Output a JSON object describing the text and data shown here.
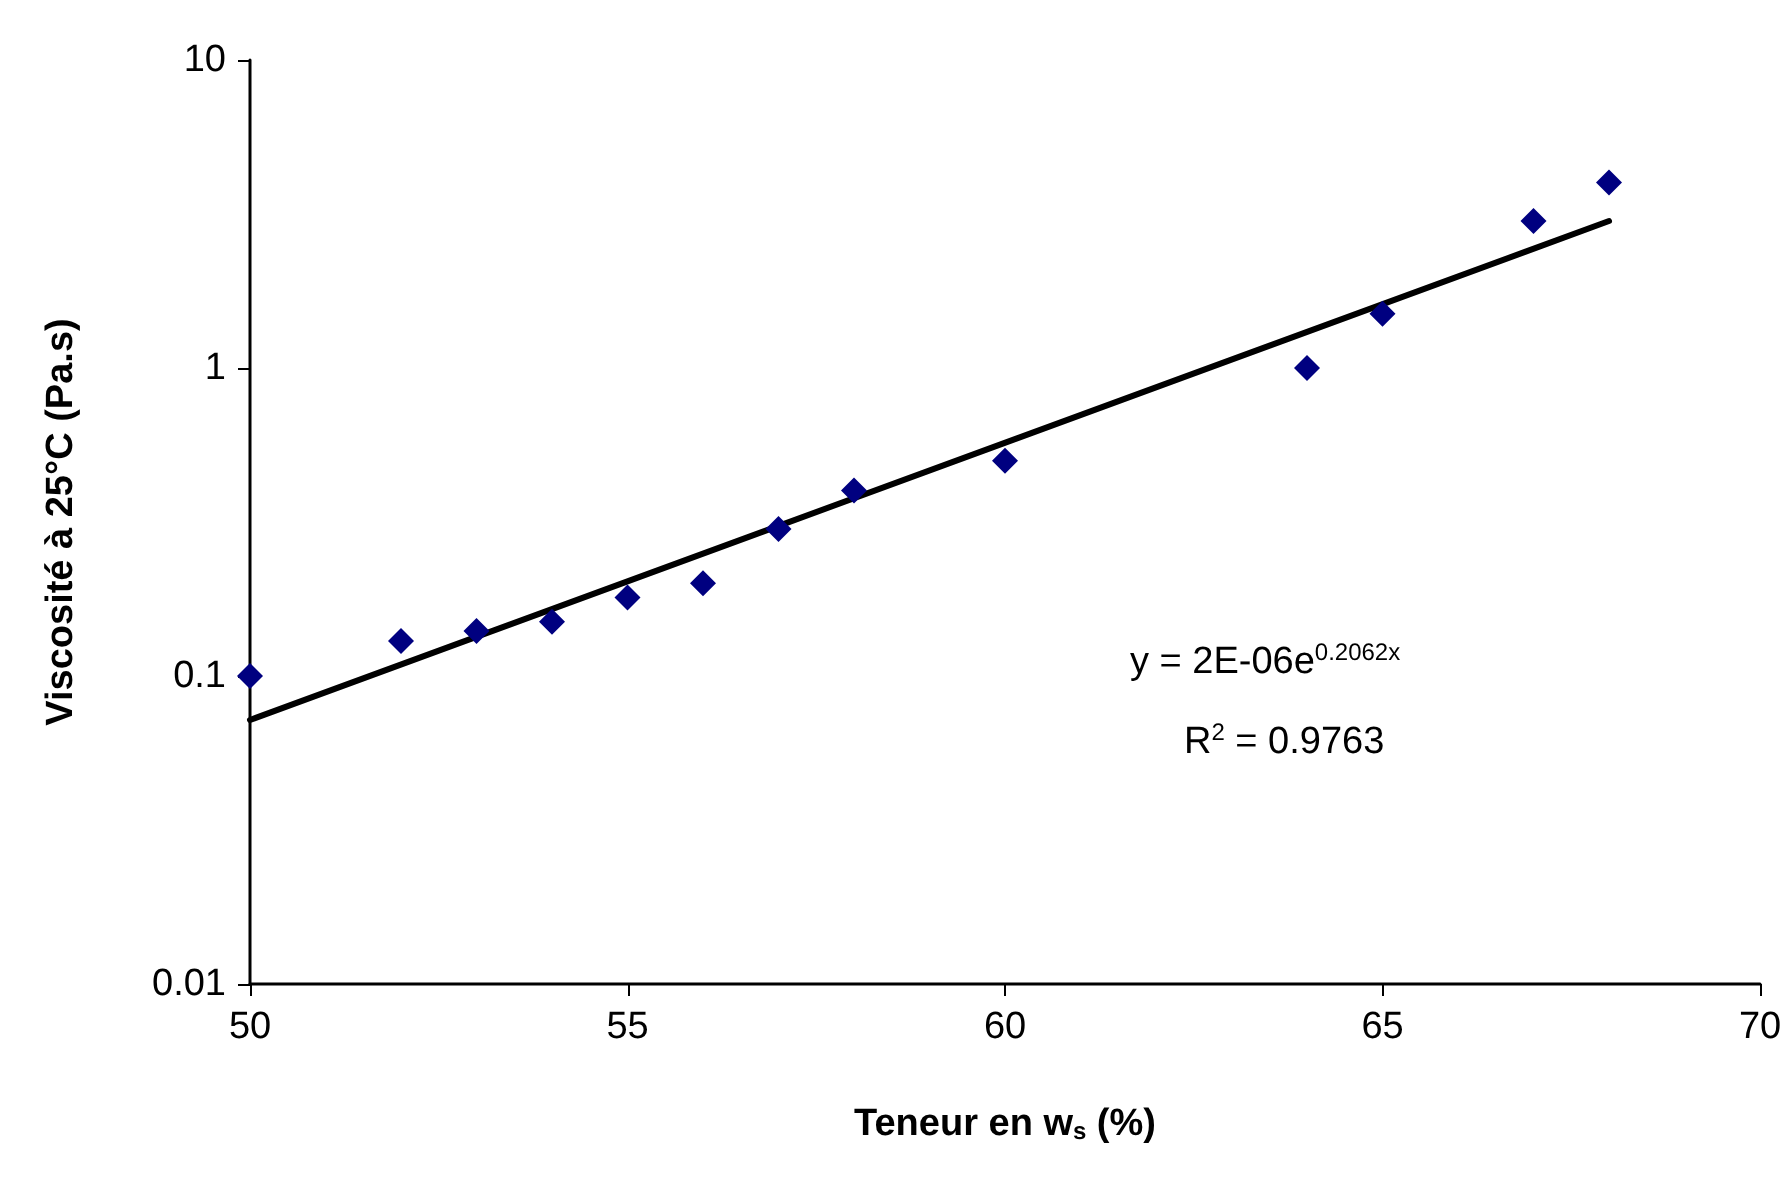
{
  "chart_data": {
    "type": "scatter",
    "xlabel": "Teneur en w$_{s}$ (%)",
    "ylabel": "Viscosité à 25°C (Pa.s)",
    "x": [
      50,
      52,
      53,
      54,
      55,
      56,
      57,
      58,
      60,
      64,
      65,
      67,
      68
    ],
    "series": [
      {
        "color": "#000080",
        "marker": "diamond",
        "values": [
          0.1,
          0.13,
          0.14,
          0.15,
          0.18,
          0.2,
          0.3,
          0.4,
          0.5,
          1,
          1.5,
          3,
          4
        ]
      },
      {
        "type": "line",
        "color": "#000000",
        "marker": "none",
        "line_style": "solid",
        "x": [
          50,
          68
        ],
        "values": [
          0.072,
          3
        ]
      }
    ],
    "log": "y",
    "xlim": [
      50,
      70
    ],
    "xticks": [
      50,
      55,
      60,
      65,
      70
    ],
    "ylim": [
      0.01,
      10
    ],
    "yticks": [
      0.01,
      0.1,
      1,
      10
    ],
    "grid": false,
    "annotations": [
      "y = 2E-06e$^{0.2062x}$",
      "R$^{2}$ = 0.9763"
    ]
  }
}
